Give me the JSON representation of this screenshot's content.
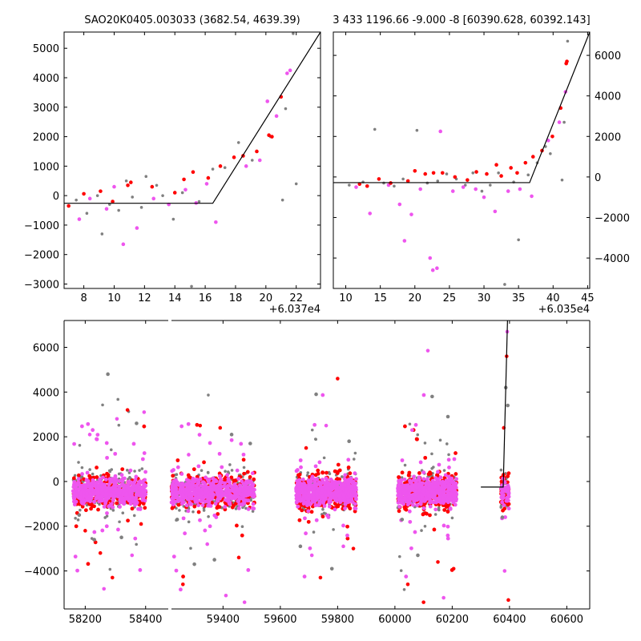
{
  "colors": {
    "grey": "#808080",
    "magenta": "#ee55ee",
    "red": "#ff0000",
    "line": "#000000"
  },
  "chart_data": [
    {
      "type": "scatter",
      "title": "SAO20K0405.003033 (3682.54, 4639.39)",
      "xlim": [
        6.7,
        23.6
      ],
      "ylim": [
        -3150,
        5550
      ],
      "x_offset_label": "+6.037e4",
      "xticks": [
        8,
        10,
        12,
        14,
        16,
        18,
        20,
        22
      ],
      "yticks": [
        -3000,
        -2000,
        -1000,
        0,
        1000,
        2000,
        3000,
        4000,
        5000
      ],
      "ytick_side": "left",
      "model_line": [
        [
          6.7,
          -260
        ],
        [
          16.5,
          -260
        ],
        [
          23.6,
          5550
        ]
      ],
      "series": [
        {
          "color": "grey",
          "points": [
            [
              7.5,
              -150
            ],
            [
              8.2,
              -600
            ],
            [
              8.9,
              0
            ],
            [
              9.2,
              -1300
            ],
            [
              9.7,
              -300
            ],
            [
              10.3,
              -500
            ],
            [
              10.8,
              500
            ],
            [
              11.2,
              -50
            ],
            [
              11.8,
              -400
            ],
            [
              12.1,
              650
            ],
            [
              12.8,
              350
            ],
            [
              13.2,
              0
            ],
            [
              13.9,
              -800
            ],
            [
              14.5,
              100
            ],
            [
              15.1,
              -3080
            ],
            [
              15.6,
              -200
            ],
            [
              16.5,
              900
            ],
            [
              17.3,
              950
            ],
            [
              18.2,
              1800
            ],
            [
              19.1,
              1200
            ],
            [
              20.3,
              2000
            ],
            [
              21.1,
              -150
            ],
            [
              21.3,
              2950
            ],
            [
              21.8,
              5500
            ],
            [
              22.0,
              400
            ]
          ]
        },
        {
          "color": "magenta",
          "points": [
            [
              7.7,
              -800
            ],
            [
              8.4,
              -100
            ],
            [
              9.5,
              -450
            ],
            [
              10.0,
              300
            ],
            [
              10.6,
              -1650
            ],
            [
              11.5,
              -1100
            ],
            [
              12.6,
              -100
            ],
            [
              13.6,
              -300
            ],
            [
              14.7,
              200
            ],
            [
              15.4,
              -250
            ],
            [
              16.1,
              400
            ],
            [
              16.7,
              -900
            ],
            [
              18.7,
              1000
            ],
            [
              19.6,
              1200
            ],
            [
              20.1,
              3200
            ],
            [
              20.7,
              2700
            ],
            [
              21.4,
              4150
            ],
            [
              21.6,
              4250
            ]
          ]
        },
        {
          "color": "red",
          "points": [
            [
              7.0,
              -350
            ],
            [
              8.0,
              60
            ],
            [
              9.1,
              150
            ],
            [
              9.9,
              -200
            ],
            [
              10.9,
              350
            ],
            [
              11.1,
              450
            ],
            [
              12.5,
              300
            ],
            [
              14.0,
              100
            ],
            [
              14.6,
              550
            ],
            [
              15.2,
              800
            ],
            [
              16.2,
              600
            ],
            [
              17.0,
              1000
            ],
            [
              17.9,
              1300
            ],
            [
              18.5,
              1350
            ],
            [
              19.4,
              1500
            ],
            [
              20.2,
              2050
            ],
            [
              20.4,
              2000
            ],
            [
              21.0,
              3350
            ]
          ]
        }
      ]
    },
    {
      "type": "scatter",
      "title": "3 433 1196.66 -9.000 -8 [60390.628, 60392.143]",
      "xlim": [
        8.2,
        45.3
      ],
      "ylim": [
        -5500,
        7150
      ],
      "x_offset_label": "+6.035e4",
      "xticks": [
        10,
        15,
        20,
        25,
        30,
        35,
        40,
        45
      ],
      "yticks": [
        -4000,
        -2000,
        0,
        2000,
        4000,
        6000
      ],
      "ytick_side": "right",
      "model_line": [
        [
          8.2,
          -280
        ],
        [
          36.6,
          -280
        ],
        [
          45.3,
          7150
        ]
      ],
      "series": [
        {
          "color": "grey",
          "points": [
            [
              10.5,
              -400
            ],
            [
              12.5,
              -250
            ],
            [
              14.2,
              2350
            ],
            [
              15.5,
              -300
            ],
            [
              17.0,
              -450
            ],
            [
              18.3,
              -100
            ],
            [
              20.3,
              2300
            ],
            [
              21.8,
              -300
            ],
            [
              23.3,
              -200
            ],
            [
              24.6,
              150
            ],
            [
              26.0,
              -100
            ],
            [
              27.3,
              -400
            ],
            [
              28.4,
              200
            ],
            [
              29.7,
              -700
            ],
            [
              30.9,
              -400
            ],
            [
              32.1,
              200
            ],
            [
              33.0,
              -5300
            ],
            [
              34.3,
              -250
            ],
            [
              35.0,
              -3100
            ],
            [
              36.4,
              100
            ],
            [
              37.7,
              700
            ],
            [
              38.9,
              1500
            ],
            [
              39.6,
              1150
            ],
            [
              41.3,
              -150
            ],
            [
              42.1,
              6700
            ],
            [
              41.6,
              2700
            ]
          ]
        },
        {
          "color": "magenta",
          "points": [
            [
              11.5,
              -500
            ],
            [
              13.5,
              -1800
            ],
            [
              16.2,
              -400
            ],
            [
              17.8,
              -1350
            ],
            [
              18.5,
              -3150
            ],
            [
              19.5,
              -1850
            ],
            [
              20.8,
              -600
            ],
            [
              22.2,
              -4000
            ],
            [
              22.6,
              -4600
            ],
            [
              23.2,
              -4500
            ],
            [
              23.7,
              2250
            ],
            [
              25.5,
              -700
            ],
            [
              27.0,
              -500
            ],
            [
              28.8,
              -600
            ],
            [
              30.0,
              -1000
            ],
            [
              31.6,
              -1700
            ],
            [
              33.5,
              -700
            ],
            [
              35.2,
              -600
            ],
            [
              36.9,
              -950
            ],
            [
              39.3,
              1800
            ],
            [
              40.9,
              2700
            ],
            [
              41.8,
              4200
            ]
          ]
        },
        {
          "color": "red",
          "points": [
            [
              12.0,
              -350
            ],
            [
              13.1,
              -450
            ],
            [
              14.8,
              -100
            ],
            [
              16.5,
              -300
            ],
            [
              19.0,
              -200
            ],
            [
              20.0,
              300
            ],
            [
              21.5,
              150
            ],
            [
              22.7,
              200
            ],
            [
              24.0,
              200
            ],
            [
              25.8,
              0
            ],
            [
              27.6,
              -150
            ],
            [
              28.9,
              250
            ],
            [
              30.4,
              150
            ],
            [
              31.8,
              600
            ],
            [
              32.5,
              50
            ],
            [
              33.9,
              450
            ],
            [
              34.8,
              200
            ],
            [
              36.0,
              700
            ],
            [
              37.1,
              1000
            ],
            [
              38.4,
              1300
            ],
            [
              39.9,
              2000
            ],
            [
              41.1,
              3400
            ],
            [
              41.9,
              5600
            ],
            [
              42.0,
              5700
            ]
          ]
        }
      ]
    },
    {
      "type": "scatter",
      "xlim": [
        58130,
        60680
      ],
      "ylim": [
        -5700,
        7200
      ],
      "xticks": [
        58200,
        58400,
        59400,
        59600,
        59800,
        60000,
        60200,
        60400,
        60600
      ],
      "yticks": [
        -4000,
        -2000,
        0,
        2000,
        4000,
        6000
      ],
      "ytick_side": "left",
      "axis_break": [
        58475,
        59220
      ],
      "model_line": [
        [
          60300,
          -250
        ],
        [
          60378,
          -250
        ],
        [
          60393,
          7200
        ]
      ],
      "clusters": [
        {
          "x_range": [
            58160,
            58400
          ],
          "sample": [
            [
              58180,
              -1500
            ],
            [
              58200,
              -2200
            ],
            [
              58215,
              2100
            ],
            [
              58230,
              -2600
            ],
            [
              58250,
              -3200
            ],
            [
              58262,
              -4800
            ],
            [
              58275,
              4800
            ],
            [
              58290,
              -4300
            ],
            [
              58305,
              2800
            ],
            [
              58320,
              -2500
            ],
            [
              58340,
              3200
            ],
            [
              58355,
              -3300
            ],
            [
              58370,
              2600
            ],
            [
              58385,
              -1900
            ],
            [
              58395,
              3100
            ]
          ]
        },
        {
          "x_range": [
            59220,
            59510
          ],
          "sample": [
            [
              59240,
              -1700
            ],
            [
              59260,
              -4600
            ],
            [
              59280,
              1200
            ],
            [
              59300,
              -3700
            ],
            [
              59320,
              2500
            ],
            [
              59345,
              -2800
            ],
            [
              59370,
              -3500
            ],
            [
              59390,
              2400
            ],
            [
              59410,
              -5100
            ],
            [
              59430,
              2100
            ],
            [
              59455,
              -3400
            ],
            [
              59475,
              -5400
            ],
            [
              59495,
              1700
            ]
          ]
        },
        {
          "x_range": [
            59655,
            59865
          ],
          "sample": [
            [
              59670,
              -2900
            ],
            [
              59690,
              1500
            ],
            [
              59710,
              -3300
            ],
            [
              59725,
              3900
            ],
            [
              59740,
              -4300
            ],
            [
              59760,
              2500
            ],
            [
              59780,
              -3900
            ],
            [
              59800,
              4600
            ],
            [
              59820,
              -2900
            ],
            [
              59840,
              1800
            ],
            [
              59855,
              -3000
            ]
          ]
        },
        {
          "x_range": [
            60010,
            60215
          ],
          "sample": [
            [
              60025,
              -1700
            ],
            [
              60045,
              -4600
            ],
            [
              60060,
              2300
            ],
            [
              60080,
              -3300
            ],
            [
              60100,
              -5400
            ],
            [
              60115,
              5850
            ],
            [
              60130,
              3800
            ],
            [
              60150,
              -3600
            ],
            [
              60170,
              -5200
            ],
            [
              60185,
              2900
            ],
            [
              60205,
              -3900
            ]
          ]
        },
        {
          "x_range": [
            60370,
            60398
          ],
          "sample": [
            [
              60375,
              -1600
            ],
            [
              60380,
              2400
            ],
            [
              60383,
              -4000
            ],
            [
              60387,
              4200
            ],
            [
              60390,
              5600
            ],
            [
              60392,
              6700
            ],
            [
              60394,
              3400
            ],
            [
              60396,
              -5300
            ]
          ]
        }
      ]
    }
  ]
}
